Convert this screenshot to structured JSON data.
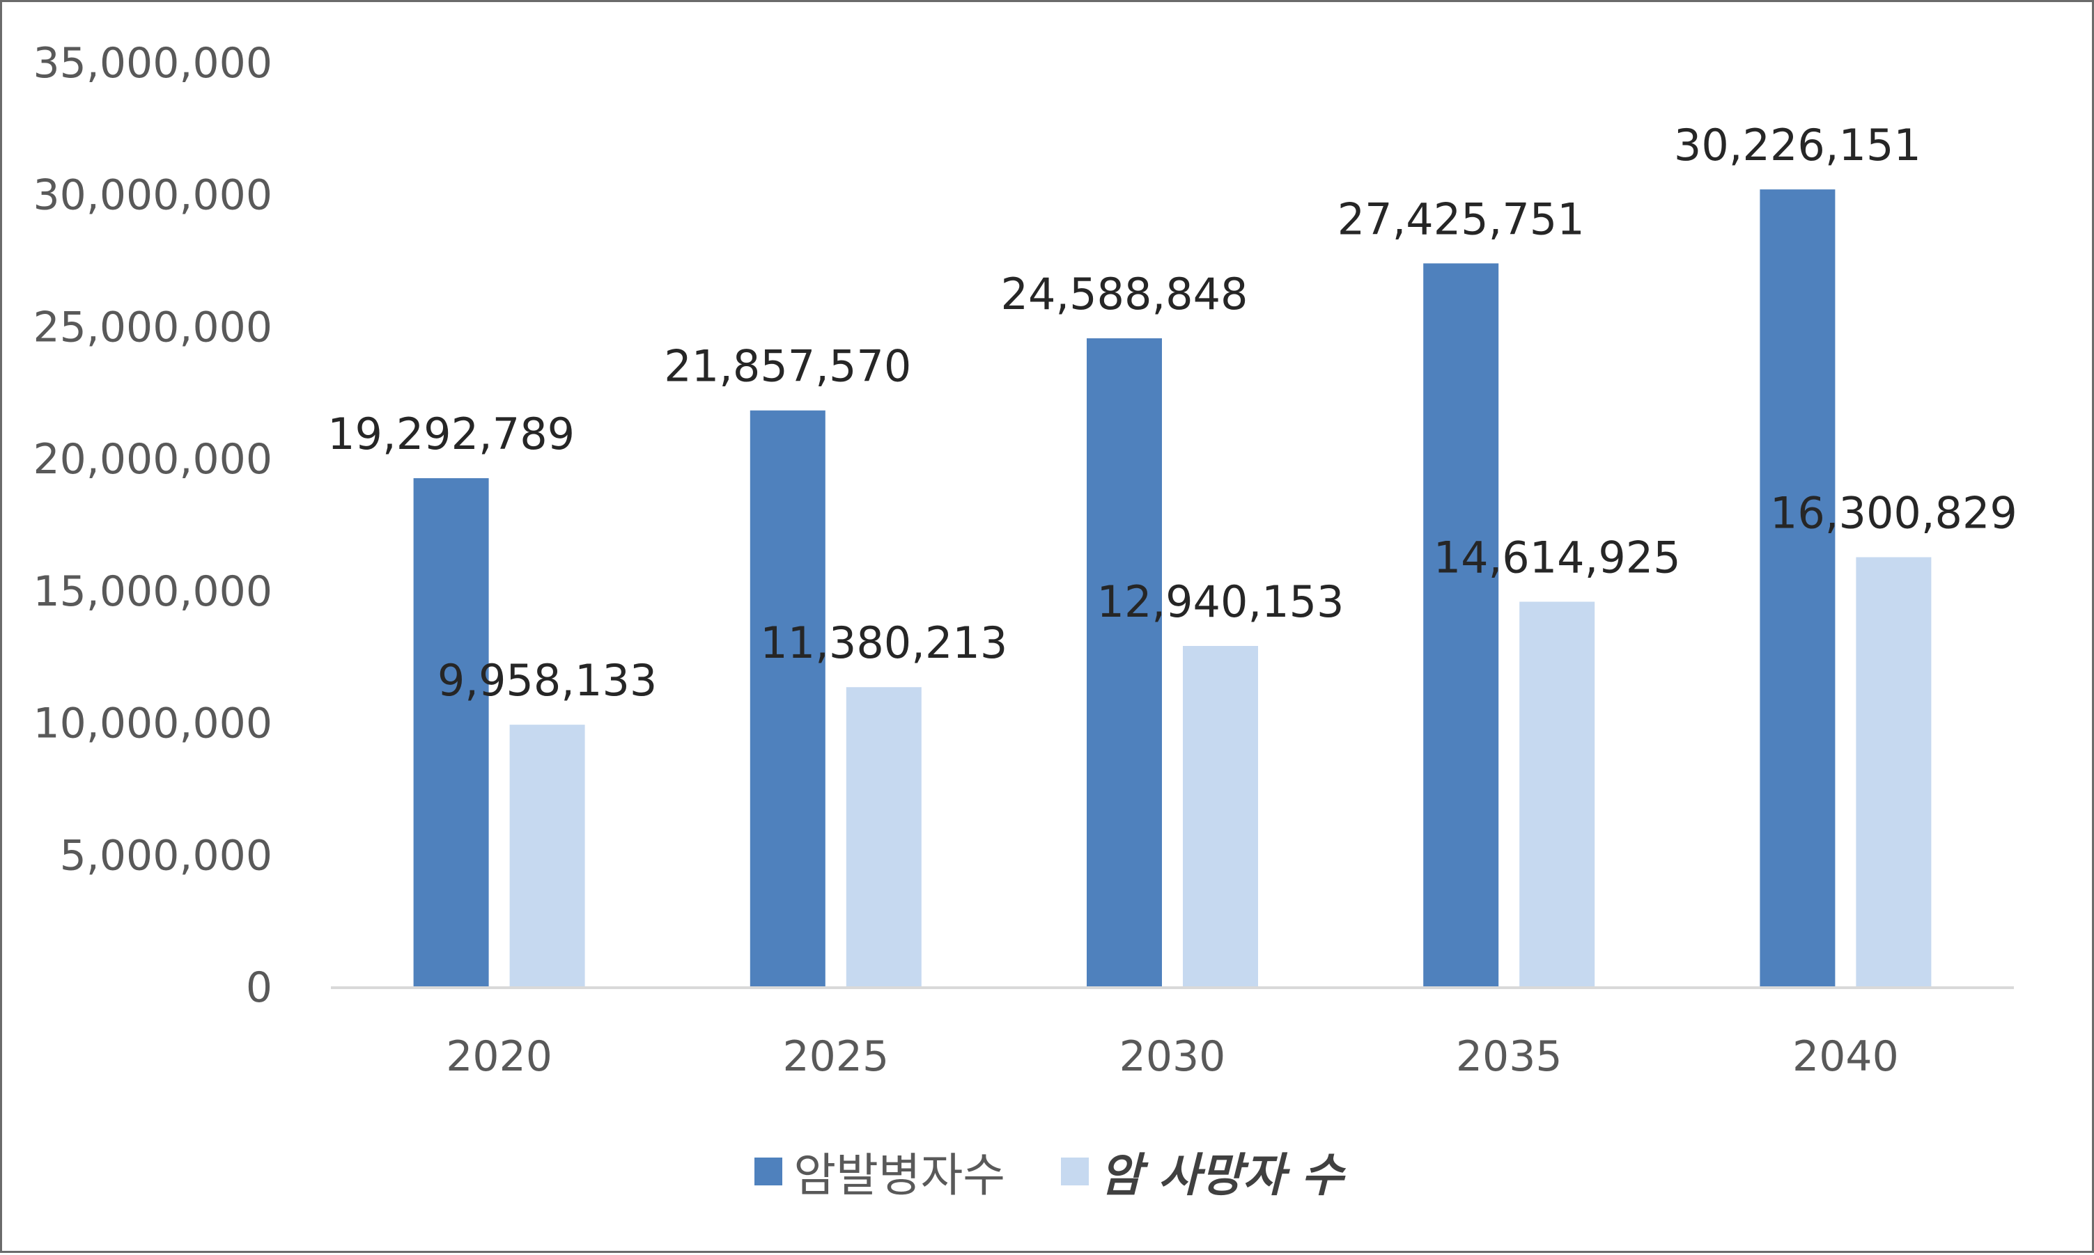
{
  "chart_data": {
    "type": "bar",
    "categories": [
      "2020",
      "2025",
      "2030",
      "2035",
      "2040"
    ],
    "series": [
      {
        "name": "암발병자수",
        "color": "#4f81bd",
        "values": [
          19292789,
          21857570,
          24588848,
          27425751,
          30226151
        ],
        "labels": [
          "19,292,789",
          "21,857,570",
          "24,588,848",
          "27,425,751",
          "30,226,151"
        ]
      },
      {
        "name": "암 사망자 수",
        "color": "#c6d9f0",
        "values": [
          9958133,
          11380213,
          12940153,
          14614925,
          16300829
        ],
        "labels": [
          "9,958,133",
          "11,380,213",
          "12,940,153",
          "14,614,925",
          "16,300,829"
        ]
      }
    ],
    "ylim": [
      0,
      35000000
    ],
    "ytick_values": [
      0,
      5000000,
      10000000,
      15000000,
      20000000,
      25000000,
      30000000,
      35000000
    ],
    "ytick_labels": [
      "0",
      "5,000,000",
      "10,000,000",
      "15,000,000",
      "20,000,000",
      "25,000,000",
      "30,000,000",
      "35,000,000"
    ],
    "grid": false,
    "legend_position": "bottom",
    "axis_color": "#d9d9d9"
  }
}
